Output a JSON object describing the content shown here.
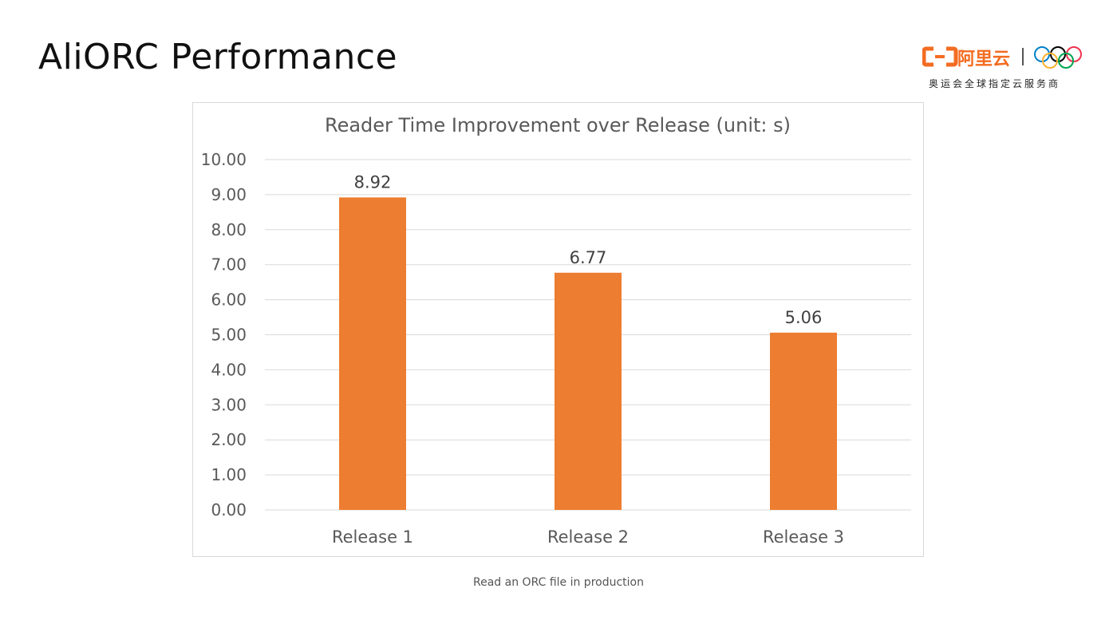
{
  "slide": {
    "title": "AliORC Performance",
    "caption": "Read an ORC file in production"
  },
  "logo": {
    "brand_text": "阿里云",
    "tagline": "奥运会全球指定云服务商",
    "brand_color": "#f36c21",
    "icons": [
      "aliyun-bracket-icon",
      "olympic-rings-icon"
    ]
  },
  "chart_data": {
    "type": "bar",
    "title": "Reader Time Improvement over Release (unit: s)",
    "categories": [
      "Release 1",
      "Release 2",
      "Release 3"
    ],
    "values": [
      8.92,
      6.77,
      5.06
    ],
    "value_labels": [
      "8.92",
      "6.77",
      "5.06"
    ],
    "ylim": [
      0,
      10
    ],
    "yticks": [
      "0.00",
      "1.00",
      "2.00",
      "3.00",
      "4.00",
      "5.00",
      "6.00",
      "7.00",
      "8.00",
      "9.00",
      "10.00"
    ],
    "xlabel": "",
    "ylabel": "",
    "grid": true,
    "legend": false,
    "bar_color": "#ed7d31",
    "gridline_color": "#d9d9d9",
    "text_color": "#595959"
  }
}
